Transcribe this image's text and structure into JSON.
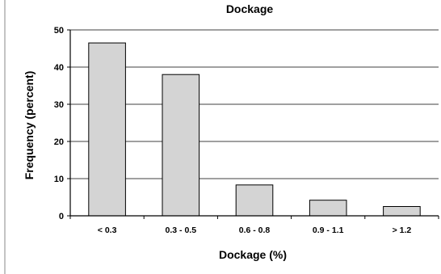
{
  "chart_data": {
    "type": "bar",
    "title": "Dockage",
    "xlabel": "Dockage (%)",
    "ylabel": "Frequency (percent)",
    "categories": [
      "< 0.3",
      "0.3 - 0.5",
      "0.6 - 0.8",
      "0.9 - 1.1",
      "> 1.2"
    ],
    "values": [
      46.5,
      38,
      8.3,
      4.2,
      2.5
    ],
    "ylim": [
      0,
      50
    ],
    "yticks": [
      0,
      10,
      20,
      30,
      40,
      50
    ],
    "grid": true,
    "legend": "none",
    "colors": {
      "bar_fill": "#d4d4d4",
      "bar_stroke": "#000000",
      "grid": "#000000"
    }
  }
}
